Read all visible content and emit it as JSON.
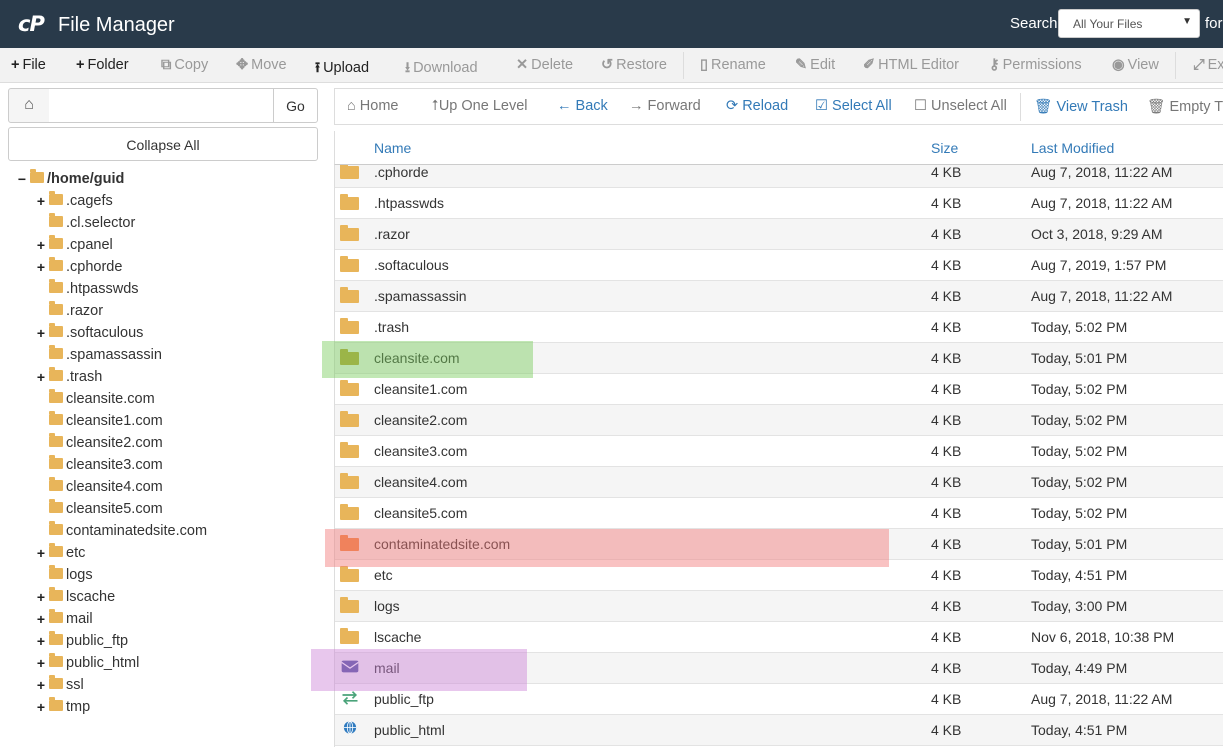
{
  "header": {
    "logo": "cP",
    "title": "File Manager",
    "search_label": "Search",
    "search_scope": "All Your Files",
    "search_for": "for"
  },
  "toolbar": {
    "file": "File",
    "folder": "Folder",
    "copy": "Copy",
    "move": "Move",
    "upload": "Upload",
    "download": "Download",
    "delete": "Delete",
    "restore": "Restore",
    "rename": "Rename",
    "edit": "Edit",
    "html_editor": "HTML Editor",
    "permissions": "Permissions",
    "view": "View",
    "extract": "Ex"
  },
  "sidebar": {
    "go_label": "Go",
    "path_value": "",
    "collapse_all": "Collapse All",
    "root": "/home/guid",
    "items": [
      {
        "label": ".cagefs",
        "expandable": true
      },
      {
        "label": ".cl.selector",
        "expandable": false
      },
      {
        "label": ".cpanel",
        "expandable": true
      },
      {
        "label": ".cphorde",
        "expandable": true
      },
      {
        "label": ".htpasswds",
        "expandable": false
      },
      {
        "label": ".razor",
        "expandable": false
      },
      {
        "label": ".softaculous",
        "expandable": true
      },
      {
        "label": ".spamassassin",
        "expandable": false
      },
      {
        "label": ".trash",
        "expandable": true
      },
      {
        "label": "cleansite.com",
        "expandable": false
      },
      {
        "label": "cleansite1.com",
        "expandable": false
      },
      {
        "label": "cleansite2.com",
        "expandable": false
      },
      {
        "label": "cleansite3.com",
        "expandable": false
      },
      {
        "label": "cleansite4.com",
        "expandable": false
      },
      {
        "label": "cleansite5.com",
        "expandable": false
      },
      {
        "label": "contaminatedsite.com",
        "expandable": false
      },
      {
        "label": "etc",
        "expandable": true
      },
      {
        "label": "logs",
        "expandable": false
      },
      {
        "label": "lscache",
        "expandable": true
      },
      {
        "label": "mail",
        "expandable": true
      },
      {
        "label": "public_ftp",
        "expandable": true
      },
      {
        "label": "public_html",
        "expandable": true
      },
      {
        "label": "ssl",
        "expandable": true
      },
      {
        "label": "tmp",
        "expandable": true
      }
    ]
  },
  "navbar": {
    "home": "Home",
    "up_one_level": "Up One Level",
    "back": "Back",
    "forward": "Forward",
    "reload": "Reload",
    "select_all": "Select All",
    "unselect_all": "Unselect All",
    "view_trash": "View Trash",
    "empty_trash": "Empty Tra"
  },
  "table": {
    "columns": {
      "name": "Name",
      "size": "Size",
      "modified": "Last Modified"
    },
    "rows": [
      {
        "name": ".cphorde",
        "size": "4 KB",
        "modified": "Aug 7, 2018, 11:22 AM",
        "icon": "folder-icon"
      },
      {
        "name": ".htpasswds",
        "size": "4 KB",
        "modified": "Aug 7, 2018, 11:22 AM",
        "icon": "folder-icon"
      },
      {
        "name": ".razor",
        "size": "4 KB",
        "modified": "Oct 3, 2018, 9:29 AM",
        "icon": "folder-icon"
      },
      {
        "name": ".softaculous",
        "size": "4 KB",
        "modified": "Aug 7, 2019, 1:57 PM",
        "icon": "folder-icon"
      },
      {
        "name": ".spamassassin",
        "size": "4 KB",
        "modified": "Aug 7, 2018, 11:22 AM",
        "icon": "folder-icon"
      },
      {
        "name": ".trash",
        "size": "4 KB",
        "modified": "Today, 5:02 PM",
        "icon": "folder-icon"
      },
      {
        "name": "cleansite.com",
        "size": "4 KB",
        "modified": "Today, 5:01 PM",
        "icon": "folder-icon",
        "highlight": "green"
      },
      {
        "name": "cleansite1.com",
        "size": "4 KB",
        "modified": "Today, 5:02 PM",
        "icon": "folder-icon"
      },
      {
        "name": "cleansite2.com",
        "size": "4 KB",
        "modified": "Today, 5:02 PM",
        "icon": "folder-icon"
      },
      {
        "name": "cleansite3.com",
        "size": "4 KB",
        "modified": "Today, 5:02 PM",
        "icon": "folder-icon"
      },
      {
        "name": "cleansite4.com",
        "size": "4 KB",
        "modified": "Today, 5:02 PM",
        "icon": "folder-icon"
      },
      {
        "name": "cleansite5.com",
        "size": "4 KB",
        "modified": "Today, 5:02 PM",
        "icon": "folder-icon"
      },
      {
        "name": "contaminatedsite.com",
        "size": "4 KB",
        "modified": "Today, 5:01 PM",
        "icon": "folder-icon",
        "highlight": "red"
      },
      {
        "name": "etc",
        "size": "4 KB",
        "modified": "Today, 4:51 PM",
        "icon": "folder-icon"
      },
      {
        "name": "logs",
        "size": "4 KB",
        "modified": "Today, 3:00 PM",
        "icon": "folder-icon"
      },
      {
        "name": "lscache",
        "size": "4 KB",
        "modified": "Nov 6, 2018, 10:38 PM",
        "icon": "folder-icon"
      },
      {
        "name": "mail",
        "size": "4 KB",
        "modified": "Today, 4:49 PM",
        "icon": "mail-icon",
        "highlight": "purple"
      },
      {
        "name": "public_ftp",
        "size": "4 KB",
        "modified": "Aug 7, 2018, 11:22 AM",
        "icon": "transfer-icon"
      },
      {
        "name": "public_html",
        "size": "4 KB",
        "modified": "Today, 4:51 PM",
        "icon": "globe-icon"
      }
    ]
  },
  "colors": {
    "header_bg": "#293a4a",
    "link_blue": "#337ab7",
    "folder": "#e8b55a",
    "highlight_green": "#9fd98a",
    "highlight_red": "#f7b5b5",
    "highlight_purple": "#e2bde6"
  }
}
